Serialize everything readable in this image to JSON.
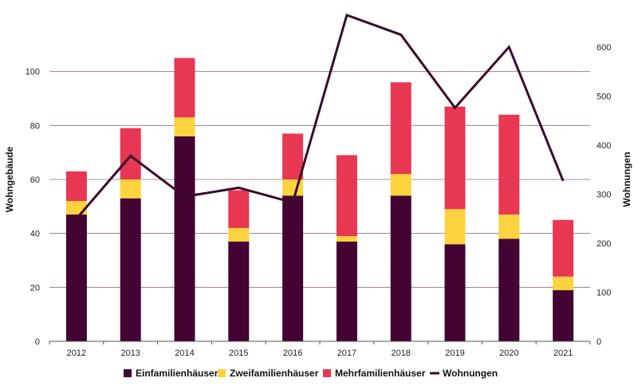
{
  "chart_data": {
    "type": "bar",
    "stacked": true,
    "categories": [
      "2012",
      "2013",
      "2014",
      "2015",
      "2016",
      "2017",
      "2018",
      "2019",
      "2020",
      "2021"
    ],
    "series": [
      {
        "name": "Einfamilienhäuser",
        "axis": "left",
        "color": "#430433",
        "values": [
          47,
          53,
          76,
          37,
          54,
          37,
          54,
          36,
          38,
          19
        ]
      },
      {
        "name": "Zweifamilienhäuser",
        "axis": "left",
        "color": "#fcd33f",
        "values": [
          5,
          7,
          7,
          5,
          6,
          2,
          8,
          13,
          9,
          5
        ]
      },
      {
        "name": "Mehrfamilienhäuser",
        "axis": "left",
        "color": "#e83752",
        "values": [
          11,
          19,
          22,
          14,
          17,
          30,
          34,
          38,
          37,
          21
        ]
      },
      {
        "name": "Wohnungen",
        "axis": "right",
        "type": "line",
        "color": "#3a0a2d",
        "values": [
          250,
          378,
          295,
          313,
          283,
          665,
          625,
          476,
          600,
          327
        ]
      }
    ],
    "ylabel": "Wohngebäude",
    "y2label": "Wohnungen",
    "ylim": [
      0,
      120
    ],
    "y2lim": [
      0,
      660
    ],
    "yticks": [
      0,
      20,
      40,
      60,
      80,
      100
    ],
    "y2ticks": [
      0,
      100,
      200,
      300,
      400,
      500,
      600
    ],
    "grid": true,
    "legend": "bottom"
  }
}
